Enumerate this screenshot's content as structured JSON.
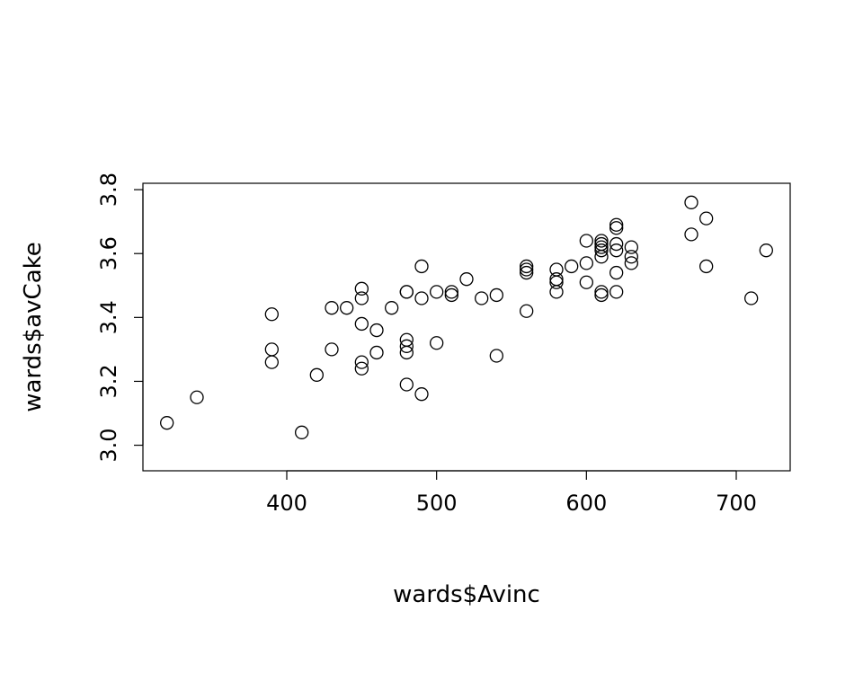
{
  "chart_data": {
    "type": "scatter",
    "title": "",
    "xlabel": "wards$Avinc",
    "ylabel": "wards$avCake",
    "xlim": [
      304,
      736
    ],
    "ylim": [
      2.92,
      3.82
    ],
    "x_ticks": [
      400,
      500,
      600,
      700
    ],
    "y_ticks": [
      3.0,
      3.2,
      3.4,
      3.6,
      3.8
    ],
    "x_tick_labels": [
      "400",
      "500",
      "600",
      "700"
    ],
    "y_tick_labels": [
      "3.0",
      "3.2",
      "3.4",
      "3.6",
      "3.8"
    ],
    "grid": false,
    "legend": "none",
    "point_color": "#000000",
    "points": [
      {
        "x": 320,
        "y": 3.07
      },
      {
        "x": 340,
        "y": 3.15
      },
      {
        "x": 390,
        "y": 3.41
      },
      {
        "x": 390,
        "y": 3.3
      },
      {
        "x": 390,
        "y": 3.26
      },
      {
        "x": 410,
        "y": 3.04
      },
      {
        "x": 420,
        "y": 3.22
      },
      {
        "x": 430,
        "y": 3.43
      },
      {
        "x": 430,
        "y": 3.3
      },
      {
        "x": 440,
        "y": 3.43
      },
      {
        "x": 450,
        "y": 3.49
      },
      {
        "x": 450,
        "y": 3.46
      },
      {
        "x": 450,
        "y": 3.38
      },
      {
        "x": 450,
        "y": 3.26
      },
      {
        "x": 450,
        "y": 3.24
      },
      {
        "x": 460,
        "y": 3.36
      },
      {
        "x": 460,
        "y": 3.29
      },
      {
        "x": 470,
        "y": 3.43
      },
      {
        "x": 480,
        "y": 3.48
      },
      {
        "x": 480,
        "y": 3.48
      },
      {
        "x": 480,
        "y": 3.33
      },
      {
        "x": 480,
        "y": 3.31
      },
      {
        "x": 480,
        "y": 3.29
      },
      {
        "x": 480,
        "y": 3.19
      },
      {
        "x": 490,
        "y": 3.56
      },
      {
        "x": 490,
        "y": 3.46
      },
      {
        "x": 490,
        "y": 3.16
      },
      {
        "x": 500,
        "y": 3.48
      },
      {
        "x": 500,
        "y": 3.32
      },
      {
        "x": 510,
        "y": 3.48
      },
      {
        "x": 510,
        "y": 3.47
      },
      {
        "x": 520,
        "y": 3.52
      },
      {
        "x": 530,
        "y": 3.46
      },
      {
        "x": 540,
        "y": 3.47
      },
      {
        "x": 540,
        "y": 3.28
      },
      {
        "x": 560,
        "y": 3.56
      },
      {
        "x": 560,
        "y": 3.55
      },
      {
        "x": 560,
        "y": 3.54
      },
      {
        "x": 560,
        "y": 3.42
      },
      {
        "x": 580,
        "y": 3.55
      },
      {
        "x": 580,
        "y": 3.52
      },
      {
        "x": 580,
        "y": 3.51
      },
      {
        "x": 580,
        "y": 3.48
      },
      {
        "x": 590,
        "y": 3.56
      },
      {
        "x": 600,
        "y": 3.64
      },
      {
        "x": 600,
        "y": 3.57
      },
      {
        "x": 600,
        "y": 3.51
      },
      {
        "x": 610,
        "y": 3.64
      },
      {
        "x": 610,
        "y": 3.63
      },
      {
        "x": 610,
        "y": 3.62
      },
      {
        "x": 610,
        "y": 3.61
      },
      {
        "x": 610,
        "y": 3.59
      },
      {
        "x": 610,
        "y": 3.48
      },
      {
        "x": 610,
        "y": 3.47
      },
      {
        "x": 620,
        "y": 3.69
      },
      {
        "x": 620,
        "y": 3.68
      },
      {
        "x": 620,
        "y": 3.63
      },
      {
        "x": 620,
        "y": 3.61
      },
      {
        "x": 620,
        "y": 3.54
      },
      {
        "x": 620,
        "y": 3.48
      },
      {
        "x": 630,
        "y": 3.62
      },
      {
        "x": 630,
        "y": 3.59
      },
      {
        "x": 630,
        "y": 3.57
      },
      {
        "x": 670,
        "y": 3.76
      },
      {
        "x": 670,
        "y": 3.66
      },
      {
        "x": 680,
        "y": 3.71
      },
      {
        "x": 680,
        "y": 3.56
      },
      {
        "x": 710,
        "y": 3.46
      },
      {
        "x": 720,
        "y": 3.61
      }
    ]
  }
}
